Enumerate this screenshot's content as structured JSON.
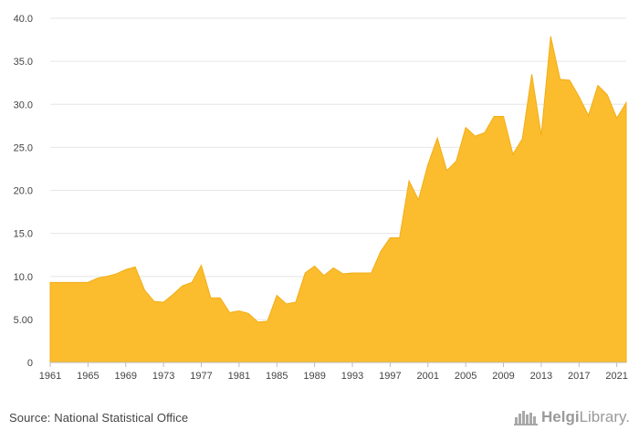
{
  "chart_data": {
    "type": "area",
    "title": "",
    "xlabel": "",
    "ylabel": "",
    "x": [
      1961,
      1962,
      1963,
      1964,
      1965,
      1966,
      1967,
      1968,
      1969,
      1970,
      1971,
      1972,
      1973,
      1974,
      1975,
      1976,
      1977,
      1978,
      1979,
      1980,
      1981,
      1982,
      1983,
      1984,
      1985,
      1986,
      1987,
      1988,
      1989,
      1990,
      1991,
      1992,
      1993,
      1994,
      1995,
      1996,
      1997,
      1998,
      1999,
      2000,
      2001,
      2002,
      2003,
      2004,
      2005,
      2006,
      2007,
      2008,
      2009,
      2010,
      2011,
      2012,
      2013,
      2014,
      2015,
      2016,
      2017,
      2018,
      2019,
      2020,
      2021,
      2022
    ],
    "series": [
      {
        "values": [
          9.3,
          9.3,
          9.3,
          9.3,
          9.3,
          9.8,
          10.0,
          10.3,
          10.8,
          11.1,
          8.4,
          7.1,
          7.0,
          7.9,
          8.9,
          9.3,
          11.3,
          7.5,
          7.5,
          5.8,
          6.0,
          5.7,
          4.7,
          4.8,
          7.8,
          6.8,
          7.0,
          10.4,
          11.2,
          10.1,
          11.0,
          10.3,
          10.4,
          10.4,
          10.4,
          12.9,
          14.5,
          14.5,
          21.1,
          18.9,
          23.0,
          26.1,
          22.3,
          23.4,
          27.3,
          26.3,
          26.7,
          28.6,
          28.6,
          24.2,
          26.0,
          33.5,
          26.4,
          37.9,
          32.9,
          32.8,
          30.9,
          28.7,
          32.2,
          31.1,
          28.4,
          30.2
        ]
      }
    ],
    "y_ticks": [
      "0",
      "5.00",
      "10.0",
      "15.0",
      "20.0",
      "25.0",
      "30.0",
      "35.0",
      "40.0"
    ],
    "x_ticks": [
      "1961",
      "1965",
      "1969",
      "1973",
      "1977",
      "1981",
      "1985",
      "1989",
      "1993",
      "1997",
      "2001",
      "2005",
      "2009",
      "2013",
      "2017",
      "2021"
    ],
    "ylim": [
      0,
      40
    ],
    "grid": true,
    "fill_color": "#fbbd2e",
    "line_color": "#f2ad14"
  },
  "footer": {
    "source": "Source: National Statistical Office",
    "logo_name": "Helgi",
    "logo_suffix": "Library."
  },
  "colors": {
    "grid": "#e6e6e6",
    "axis": "#bbbbbb",
    "text": "#444444"
  }
}
